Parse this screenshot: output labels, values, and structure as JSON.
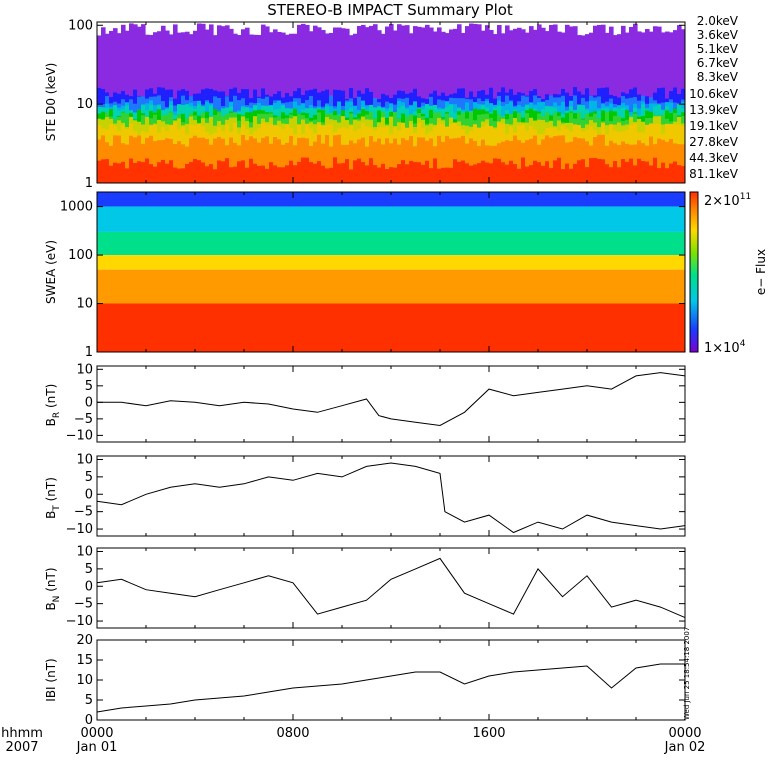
{
  "title": "STEREO-B IMPACT Summary Plot",
  "time_axis": {
    "corner_top": "hhmm",
    "corner_bottom": "2007",
    "ticks": [
      {
        "hour": 0,
        "label": "0000",
        "sublabel": "Jan 01"
      },
      {
        "hour": 8,
        "label": "0800",
        "sublabel": ""
      },
      {
        "hour": 16,
        "label": "1600",
        "sublabel": ""
      },
      {
        "hour": 24,
        "label": "0000",
        "sublabel": "Jan 02"
      }
    ]
  },
  "timestamp": "Wed Jun 25 18:54:18 2007",
  "colorbar": {
    "max_label": "2×10",
    "max_exp": "11",
    "min_label": "1×10",
    "min_exp": "4",
    "title": "e− Flux"
  },
  "chart_data": [
    {
      "id": "ste",
      "type": "heatmap",
      "ylabel": "STE D0 (keV)",
      "yscale": "log",
      "ylim": [
        1,
        110
      ],
      "yticks": [
        {
          "v": 1,
          "label": "1"
        },
        {
          "v": 10,
          "label": "10"
        },
        {
          "v": 100,
          "label": "100"
        }
      ],
      "legend_placement": "right",
      "series": [
        {
          "name": "2.0keV",
          "color": "#8a2be2",
          "typical_value": 90
        },
        {
          "name": "3.6keV",
          "color": "#2020ff",
          "typical_value": 14
        },
        {
          "name": "5.1keV",
          "color": "#1e78ff",
          "typical_value": 11
        },
        {
          "name": "6.7keV",
          "color": "#00b4e6",
          "typical_value": 9.5
        },
        {
          "name": "8.3keV",
          "color": "#00d2b4",
          "typical_value": 8.5
        },
        {
          "name": "10.6keV",
          "color": "#00c800",
          "typical_value": 7.5
        },
        {
          "name": "13.9keV",
          "color": "#32d232",
          "typical_value": 6.8
        },
        {
          "name": "19.1keV",
          "color": "#c8d200",
          "typical_value": 6.0
        },
        {
          "name": "27.8keV",
          "color": "#f0c800",
          "typical_value": 5.0
        },
        {
          "name": "44.3keV",
          "color": "#ff8c00",
          "typical_value": 3.5
        },
        {
          "name": "81.1keV",
          "color": "#ff3200",
          "typical_value": 1.8
        }
      ]
    },
    {
      "id": "swea",
      "type": "heatmap",
      "ylabel": "SWEA (eV)",
      "yscale": "log",
      "ylim": [
        1,
        2000
      ],
      "yticks": [
        {
          "v": 1,
          "label": "1"
        },
        {
          "v": 10,
          "label": "10"
        },
        {
          "v": 100,
          "label": "100"
        },
        {
          "v": 1000,
          "label": "1000"
        }
      ],
      "color_scale": [
        "#7b00d4",
        "#1a3cff",
        "#00c8e6",
        "#00e08a",
        "#7ee000",
        "#ffd800",
        "#ff8c00",
        "#ff3000"
      ],
      "energy_bands_eV": [
        2000,
        1000,
        300,
        100,
        50,
        10,
        1
      ],
      "band_colors": [
        "#1a3cff",
        "#00c8e6",
        "#00e08a",
        "#ffd800",
        "#ff9a00",
        "#ff5000",
        "#ff3000"
      ]
    },
    {
      "id": "br",
      "type": "line",
      "ylabel": "BR (nT)",
      "ylabel_main": "B",
      "ylabel_sub": "R",
      "ylabel_unit": " (nT)",
      "ylim": [
        -12,
        11
      ],
      "yticks": [
        {
          "v": -10,
          "label": "−10"
        },
        {
          "v": -5,
          "label": "−5"
        },
        {
          "v": 0,
          "label": "0"
        },
        {
          "v": 5,
          "label": "5"
        },
        {
          "v": 10,
          "label": "10"
        }
      ],
      "x": [
        0,
        1,
        2,
        3,
        4,
        5,
        6,
        7,
        8,
        9,
        10,
        11,
        11.5,
        12,
        13,
        14,
        15,
        16,
        17,
        18,
        19,
        20,
        21,
        22,
        23,
        24
      ],
      "y": [
        0,
        0,
        -1,
        0.5,
        0,
        -1,
        0,
        -0.5,
        -2,
        -3,
        -1,
        1,
        -4,
        -5,
        -6,
        -7,
        -3,
        4,
        2,
        3,
        4,
        5,
        4,
        8,
        9,
        8
      ]
    },
    {
      "id": "bt",
      "type": "line",
      "ylabel": "BT (nT)",
      "ylabel_main": "B",
      "ylabel_sub": "T",
      "ylabel_unit": " (nT)",
      "ylim": [
        -12,
        11
      ],
      "yticks": [
        {
          "v": -10,
          "label": "−10"
        },
        {
          "v": -5,
          "label": "−5"
        },
        {
          "v": 0,
          "label": "0"
        },
        {
          "v": 5,
          "label": "5"
        },
        {
          "v": 10,
          "label": "10"
        }
      ],
      "x": [
        0,
        1,
        2,
        3,
        4,
        5,
        6,
        7,
        8,
        9,
        10,
        11,
        12,
        13,
        14,
        14.2,
        15,
        16,
        17,
        18,
        19,
        20,
        21,
        22,
        23,
        24
      ],
      "y": [
        -2,
        -3,
        0,
        2,
        3,
        2,
        3,
        5,
        4,
        6,
        5,
        8,
        9,
        8,
        6,
        -5,
        -8,
        -6,
        -11,
        -8,
        -10,
        -6,
        -8,
        -9,
        -10,
        -9
      ]
    },
    {
      "id": "bn",
      "type": "line",
      "ylabel": "BN (nT)",
      "ylabel_main": "B",
      "ylabel_sub": "N",
      "ylabel_unit": " (nT)",
      "ylim": [
        -12,
        11
      ],
      "yticks": [
        {
          "v": -10,
          "label": "−10"
        },
        {
          "v": -5,
          "label": "−5"
        },
        {
          "v": 0,
          "label": "0"
        },
        {
          "v": 5,
          "label": "5"
        },
        {
          "v": 10,
          "label": "10"
        }
      ],
      "x": [
        0,
        1,
        2,
        3,
        4,
        5,
        6,
        7,
        8,
        9,
        10,
        11,
        12,
        13,
        14,
        15,
        16,
        17,
        18,
        19,
        20,
        21,
        22,
        23,
        24
      ],
      "y": [
        1,
        2,
        -1,
        -2,
        -3,
        -1,
        1,
        3,
        1,
        -8,
        -6,
        -4,
        2,
        5,
        8,
        -2,
        -5,
        -8,
        5,
        -3,
        3,
        -6,
        -4,
        -6,
        -9
      ]
    },
    {
      "id": "bmag",
      "type": "line",
      "ylabel": "IBI (nT)",
      "ylim": [
        0,
        20
      ],
      "yticks": [
        {
          "v": 0,
          "label": "0"
        },
        {
          "v": 5,
          "label": "5"
        },
        {
          "v": 10,
          "label": "10"
        },
        {
          "v": 15,
          "label": "15"
        },
        {
          "v": 20,
          "label": "20"
        }
      ],
      "x": [
        0,
        1,
        2,
        3,
        4,
        5,
        6,
        7,
        8,
        9,
        10,
        11,
        12,
        13,
        14,
        15,
        16,
        17,
        18,
        19,
        20,
        21,
        22,
        23,
        24
      ],
      "y": [
        2,
        3,
        3.5,
        4,
        5,
        5.5,
        6,
        7,
        8,
        8.5,
        9,
        10,
        11,
        12,
        12,
        9,
        11,
        12,
        12.5,
        13,
        13.5,
        8,
        13,
        14,
        14
      ]
    }
  ]
}
